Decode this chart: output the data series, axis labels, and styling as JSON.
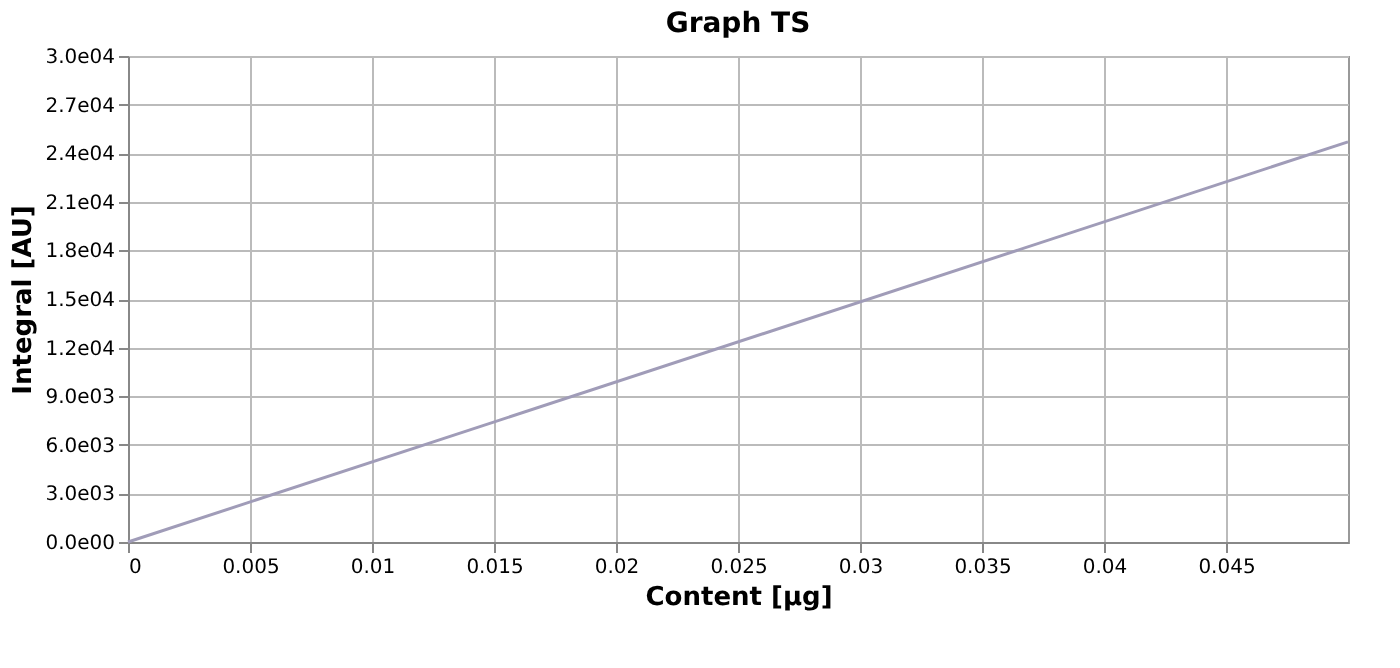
{
  "chart_data": {
    "type": "line",
    "title": "Graph TS",
    "xlabel": "Content [µg]",
    "ylabel": "Integral [AU]",
    "x": [
      0,
      0.05
    ],
    "series": [
      {
        "color": "#a09cb8",
        "values": [
          0,
          24700
        ]
      }
    ],
    "xlim": [
      0,
      0.05
    ],
    "xticks": [
      0,
      0.005,
      0.01,
      0.015,
      0.02,
      0.025,
      0.03,
      0.035,
      0.04,
      0.045
    ],
    "ylim": [
      0,
      30000
    ],
    "yticks": [
      {
        "value": 0,
        "label": "0.0e00"
      },
      {
        "value": 3000,
        "label": "3.0e03"
      },
      {
        "value": 6000,
        "label": "6.0e03"
      },
      {
        "value": 9000,
        "label": "9.0e03"
      },
      {
        "value": 12000,
        "label": "1.2e04"
      },
      {
        "value": 15000,
        "label": "1.5e04"
      },
      {
        "value": 18000,
        "label": "1.8e04"
      },
      {
        "value": 21000,
        "label": "2.1e04"
      },
      {
        "value": 24000,
        "label": "2.4e04"
      },
      {
        "value": 27000,
        "label": "2.7e04"
      },
      {
        "value": 30000,
        "label": "3.0e04"
      }
    ],
    "grid": true,
    "marker": "none",
    "line_style": "solid"
  }
}
